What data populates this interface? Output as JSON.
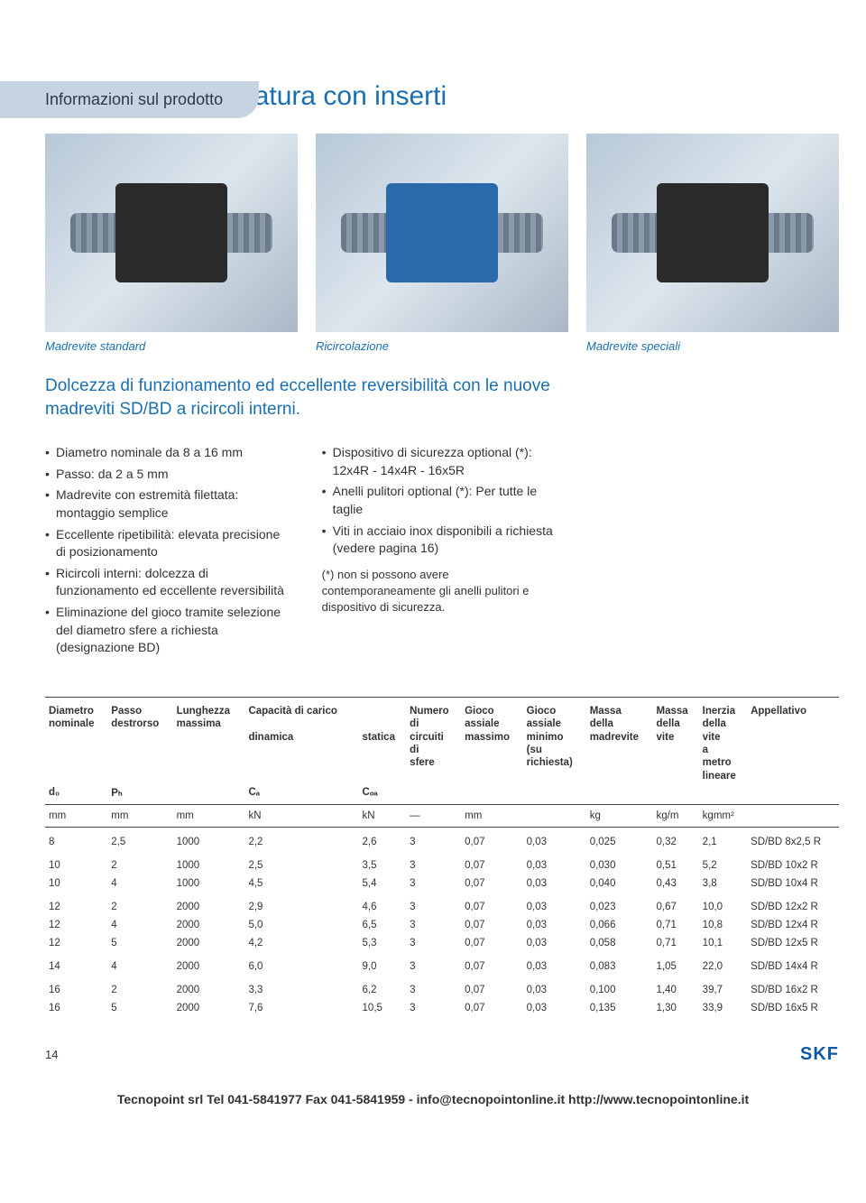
{
  "tab": "Informazioni sul prodotto",
  "title": "SD/BD viti in miniatura con inserti",
  "captions": [
    "Madrevite standard",
    "Ricircolazione",
    "Madrevite speciali"
  ],
  "lead": "Dolcezza di funzionamento ed eccellente reversibilità con le nuove madreviti SD/BD a ricircoli interni.",
  "col1": [
    "Diametro nominale da 8 a 16 mm",
    "Passo: da 2 a 5  mm",
    "Madrevite con estremità filettata: montaggio semplice",
    "Eccellente ripetibilità: elevata precisione di posizionamento",
    "Ricircoli interni: dolcezza di funzionamento ed eccellente reversibilità",
    "Eliminazione del gioco tramite selezione del diametro sfere a richiesta (designazione BD)"
  ],
  "col2": [
    "Dispositivo di sicurezza optional (*): 12x4R - 14x4R - 16x5R",
    "Anelli pulitori optional (*): Per tutte le taglie",
    "Viti in acciaio inox disponibili a richiesta (vedere pagina 16)"
  ],
  "note": "(*) non si possono avere contemporaneamente gli anelli pulitori e dispositivo di sicurezza.",
  "table": {
    "headers": [
      "Diametro nominale",
      "Passo destrorso",
      "Lunghezza massima",
      "Capacità di carico dinamica",
      "statica",
      "Numero di circuiti di sfere",
      "Gioco assiale massimo",
      "Gioco assiale minimo (su richiesta)",
      "Massa della madrevite",
      "Massa della vite",
      "Inerzia della vite a metro lineare",
      "Appellativo"
    ],
    "header_sub4": "Capacità di carico",
    "symbols": [
      "d₀",
      "Pₕ",
      "",
      "Cₐ",
      "Cₒₐ",
      "",
      "",
      "",
      "",
      "",
      "",
      ""
    ],
    "units": [
      "mm",
      "mm",
      "mm",
      "kN",
      "kN",
      "—",
      "mm",
      "",
      "kg",
      "kg/m",
      "kgmm²",
      ""
    ],
    "rows": [
      [
        "8",
        "2,5",
        "1000",
        "2,2",
        "2,6",
        "3",
        "0,07",
        "0,03",
        "0,025",
        "0,32",
        "2,1",
        "SD/BD 8x2,5 R"
      ],
      [
        "10",
        "2",
        "1000",
        "2,5",
        "3,5",
        "3",
        "0,07",
        "0,03",
        "0,030",
        "0,51",
        "5,2",
        "SD/BD 10x2 R"
      ],
      [
        "10",
        "4",
        "1000",
        "4,5",
        "5,4",
        "3",
        "0,07",
        "0,03",
        "0,040",
        "0,43",
        "3,8",
        "SD/BD 10x4 R"
      ],
      [
        "12",
        "2",
        "2000",
        "2,9",
        "4,6",
        "3",
        "0,07",
        "0,03",
        "0,023",
        "0,67",
        "10,0",
        "SD/BD 12x2 R"
      ],
      [
        "12",
        "4",
        "2000",
        "5,0",
        "6,5",
        "3",
        "0,07",
        "0,03",
        "0,066",
        "0,71",
        "10,8",
        "SD/BD 12x4 R"
      ],
      [
        "12",
        "5",
        "2000",
        "4,2",
        "5,3",
        "3",
        "0,07",
        "0,03",
        "0,058",
        "0,71",
        "10,1",
        "SD/BD 12x5 R"
      ],
      [
        "14",
        "4",
        "2000",
        "6,0",
        "9,0",
        "3",
        "0,07",
        "0,03",
        "0,083",
        "1,05",
        "22,0",
        "SD/BD 14x4 R"
      ],
      [
        "16",
        "2",
        "2000",
        "3,3",
        "6,2",
        "3",
        "0,07",
        "0,03",
        "0,100",
        "1,40",
        "39,7",
        "SD/BD 16x2 R"
      ],
      [
        "16",
        "5",
        "2000",
        "7,6",
        "10,5",
        "3",
        "0,07",
        "0,03",
        "0,135",
        "1,30",
        "33,9",
        "SD/BD 16x5 R"
      ]
    ],
    "group_first": [
      0,
      1,
      3,
      6,
      7
    ]
  },
  "pagenum": "14",
  "brand": "SKF",
  "footline": "Tecnopoint srl Tel 041-5841977 Fax 041-5841959 - info@tecnopointonline.it http://www.tecnopointonline.it",
  "colors": {
    "accent": "#1a6fb0",
    "tab_bg": "#c6d4e1"
  }
}
